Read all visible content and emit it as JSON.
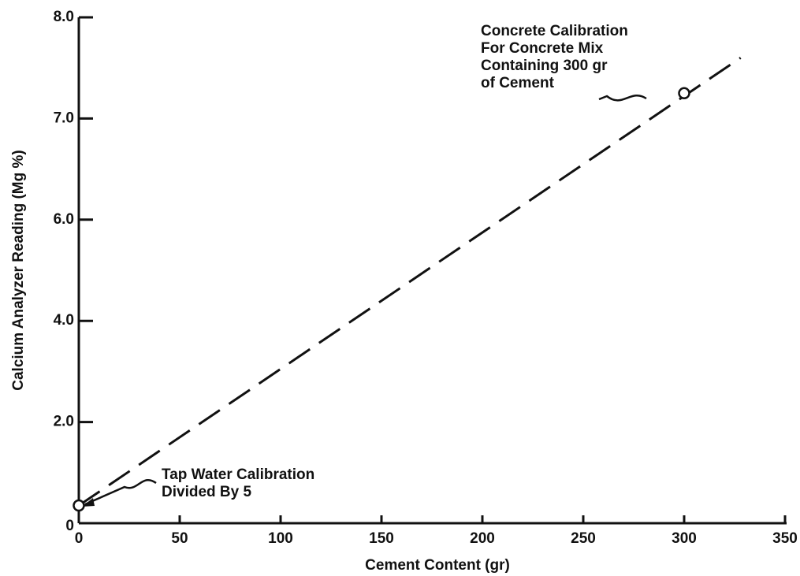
{
  "chart_data": {
    "type": "line",
    "x_label": "Cement Content (gr)",
    "y_label": "Calcium Analyzer Reading (Mg %)",
    "xlim": [
      0,
      350
    ],
    "xticks": [
      0,
      50,
      100,
      150,
      200,
      250,
      300,
      350
    ],
    "ylim": [
      0,
      8
    ],
    "yticks": [
      0,
      {
        "value": 2,
        "label": "2.0"
      },
      {
        "value": 4,
        "label": "4.0"
      },
      {
        "value": 6,
        "label": "6.0"
      },
      {
        "value": 7,
        "label": "7.0"
      },
      {
        "value": 8,
        "label": "8.0"
      }
    ],
    "line": {
      "x": [
        0,
        328
      ],
      "values": [
        0.35,
        7.6
      ],
      "color": "#111",
      "dashed": true
    },
    "points": {
      "x": [
        0,
        300
      ],
      "values": [
        0.35,
        7.25
      ]
    },
    "annotations": [
      {
        "lines": [
          "Concrete Calibration",
          "For Concrete Mix",
          "Containing 300 gr",
          "of Cement"
        ]
      },
      {
        "lines": [
          "Tap Water Calibration",
          "Divided By 5"
        ]
      }
    ]
  }
}
